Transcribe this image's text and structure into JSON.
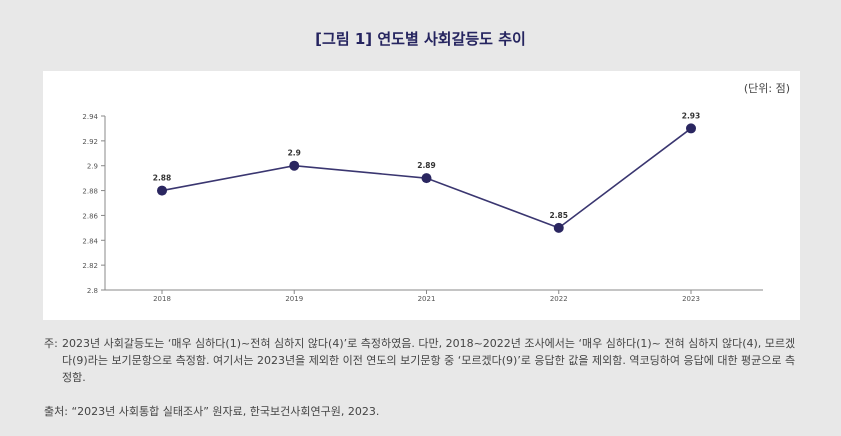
{
  "colors": {
    "title": "#25245f",
    "line": "#3a3670",
    "marker": "#2a2660",
    "axis": "#888888",
    "background": "#e8e8e8",
    "panel": "#ffffff"
  },
  "chart_data": {
    "type": "line",
    "title": "[그림 1] 연도별 사회갈등도 추이",
    "unit_label": "(단위: 점)",
    "categories": [
      "2018",
      "2019",
      "2021",
      "2022",
      "2023"
    ],
    "values": [
      2.88,
      2.9,
      2.89,
      2.85,
      2.93
    ],
    "data_labels": [
      "2.88",
      "2.9",
      "2.89",
      "2.85",
      "2.93"
    ],
    "ylim": [
      2.8,
      2.94
    ],
    "yticks": [
      2.8,
      2.82,
      2.84,
      2.86,
      2.88,
      2.9,
      2.92,
      2.94
    ],
    "ytick_labels": [
      "2.8",
      "2.82",
      "2.84",
      "2.86",
      "2.88",
      "2.9",
      "2.92",
      "2.94"
    ],
    "xlabel": "",
    "ylabel": "",
    "grid": false,
    "legend": "none"
  },
  "note": {
    "label": "주:",
    "text": "2023년 사회갈등도는 ‘매우 심하다(1)~전혀 심하지 않다(4)’로 측정하였음. 다만, 2018~2022년 조사에서는 ‘매우 심하다(1)~ 전혀 심하지 않다(4), 모르겠다(9)라는 보기문항으로 측정함. 여기서는 2023년을 제외한 이전 연도의 보기문항 중 ‘모르겠다(9)’로 응답한 값을 제외함. 역코딩하여 응답에 대한 평균으로 측정함."
  },
  "source": "출처: “2023년 사회통합 실태조사” 원자료, 한국보건사회연구원, 2023."
}
